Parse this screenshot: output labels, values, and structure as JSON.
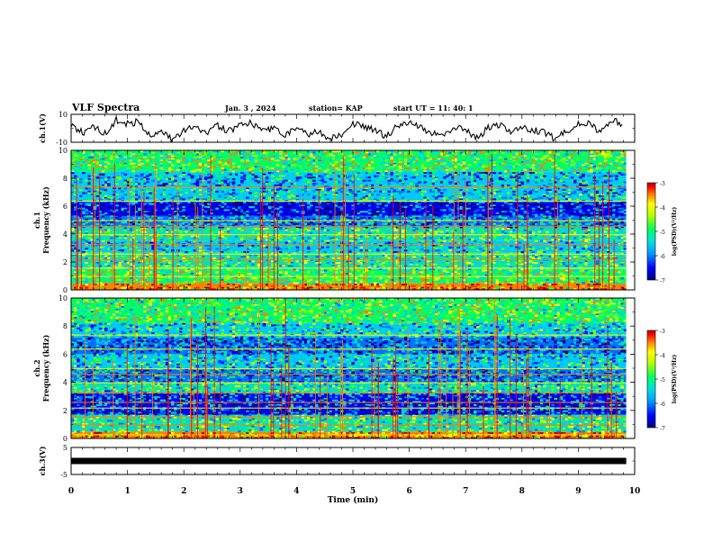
{
  "header": {
    "title": "VLF Spectra",
    "date": "Jan. 3 , 2024",
    "station": "station= KAP",
    "start_time": "start UT = 11: 40: 1"
  },
  "chart_data": [
    {
      "type": "line",
      "panel": "ch1-voltage",
      "ylabel": "ch.1(V)",
      "ylim": [
        -10,
        10
      ],
      "yticks": [
        "10",
        "-10"
      ],
      "xlim": [
        0,
        10
      ],
      "approx_series": [
        {
          "x": [
            0,
            0.2,
            0.4,
            0.6,
            0.8,
            1.0,
            1.2,
            1.4,
            1.6,
            1.8,
            2.0,
            2.2,
            2.4,
            2.6,
            2.8,
            3.0,
            3.2,
            3.4,
            3.6,
            3.8,
            4.0,
            4.2,
            4.4,
            4.6,
            4.8,
            5.0,
            5.2,
            5.4,
            5.6,
            5.8,
            6.0,
            6.2,
            6.4,
            6.6,
            6.8,
            7.0,
            7.2,
            7.4,
            7.6,
            7.8,
            8.0,
            8.2,
            8.4,
            8.6,
            8.8,
            9.0,
            9.2,
            9.4,
            9.6,
            9.8
          ],
          "y": [
            2,
            -3,
            1,
            -4,
            6,
            3,
            5,
            -6,
            -2,
            -8,
            -1,
            0,
            -4,
            2,
            -2,
            3,
            4,
            -2,
            0,
            -5,
            1,
            -4,
            -2,
            -8,
            -4,
            3,
            1,
            -2,
            -6,
            2,
            5,
            0,
            -3,
            -5,
            1,
            -2,
            -7,
            0,
            3,
            -2,
            0,
            -1,
            -3,
            -8,
            -2,
            3,
            4,
            -3,
            6,
            2
          ]
        }
      ]
    },
    {
      "type": "heatmap",
      "panel": "ch1-spectrogram",
      "ylabel": "ch.1 Frequency (kHz)",
      "ylim": [
        0,
        10
      ],
      "yticks": [
        "0",
        "2",
        "4",
        "6",
        "8",
        "10"
      ],
      "xlim": [
        0,
        9.85
      ],
      "colorbar": {
        "label": "log(PSD)(V²/Hz)",
        "min": -7,
        "max": -3,
        "ticks": [
          "-3",
          "-4",
          "-5",
          "-6",
          "-7"
        ]
      },
      "band_levels_by_freq_khz": [
        {
          "f": [
            0.0,
            0.5
          ],
          "log_psd": -4.0
        },
        {
          "f": [
            0.5,
            1.5
          ],
          "log_psd": -5.0
        },
        {
          "f": [
            1.5,
            2.7
          ],
          "log_psd": -5.2
        },
        {
          "f": [
            2.7,
            3.5
          ],
          "log_psd": -5.6
        },
        {
          "f": [
            3.5,
            4.5
          ],
          "log_psd": -5.2
        },
        {
          "f": [
            4.5,
            5.3
          ],
          "log_psd": -6.0
        },
        {
          "f": [
            5.3,
            6.3
          ],
          "log_psd": -6.6
        },
        {
          "f": [
            6.3,
            7.3
          ],
          "log_psd": -5.6
        },
        {
          "f": [
            7.3,
            8.5
          ],
          "log_psd": -5.8
        },
        {
          "f": [
            8.5,
            10.0
          ],
          "log_psd": -5.0
        }
      ]
    },
    {
      "type": "heatmap",
      "panel": "ch2-spectrogram",
      "ylabel": "ch.2 Frequency (kHz)",
      "ylim": [
        0,
        10
      ],
      "yticks": [
        "0",
        "2",
        "4",
        "6",
        "8",
        "10"
      ],
      "xlim": [
        0,
        9.85
      ],
      "colorbar": {
        "label": "log(PSD)(V²/Hz)",
        "min": -7,
        "max": -3,
        "ticks": [
          "-3",
          "-4",
          "-5",
          "-6",
          "-7"
        ]
      },
      "band_levels_by_freq_khz": [
        {
          "f": [
            0.0,
            0.5
          ],
          "log_psd": -4.0
        },
        {
          "f": [
            0.5,
            1.7
          ],
          "log_psd": -5.2
        },
        {
          "f": [
            1.7,
            3.2
          ],
          "log_psd": -6.3
        },
        {
          "f": [
            3.2,
            4.0
          ],
          "log_psd": -5.4
        },
        {
          "f": [
            4.0,
            5.0
          ],
          "log_psd": -6.0
        },
        {
          "f": [
            5.0,
            6.0
          ],
          "log_psd": -5.6
        },
        {
          "f": [
            6.0,
            7.2
          ],
          "log_psd": -6.2
        },
        {
          "f": [
            7.2,
            8.2
          ],
          "log_psd": -5.6
        },
        {
          "f": [
            8.2,
            10.0
          ],
          "log_psd": -5.0
        }
      ]
    },
    {
      "type": "line",
      "panel": "ch3-voltage",
      "ylabel": "ch.3(V)",
      "ylim": [
        -5,
        5
      ],
      "yticks": [
        "5",
        "-5"
      ],
      "xlim": [
        0,
        10
      ],
      "approx_series": [
        {
          "x": [
            0,
            9.85
          ],
          "y": [
            0,
            0
          ]
        }
      ]
    }
  ],
  "time_axis": {
    "label": "Time (min)",
    "ticks": [
      "0",
      "1",
      "2",
      "3",
      "4",
      "5",
      "6",
      "7",
      "8",
      "9",
      "10"
    ],
    "range": [
      0,
      10
    ]
  },
  "colors": {
    "palette": [
      "#000080",
      "#0000ff",
      "#0070ff",
      "#00c8ff",
      "#00e0c0",
      "#00ff60",
      "#7aff00",
      "#ffff00",
      "#ff8000",
      "#ff0000",
      "#b00000"
    ]
  }
}
